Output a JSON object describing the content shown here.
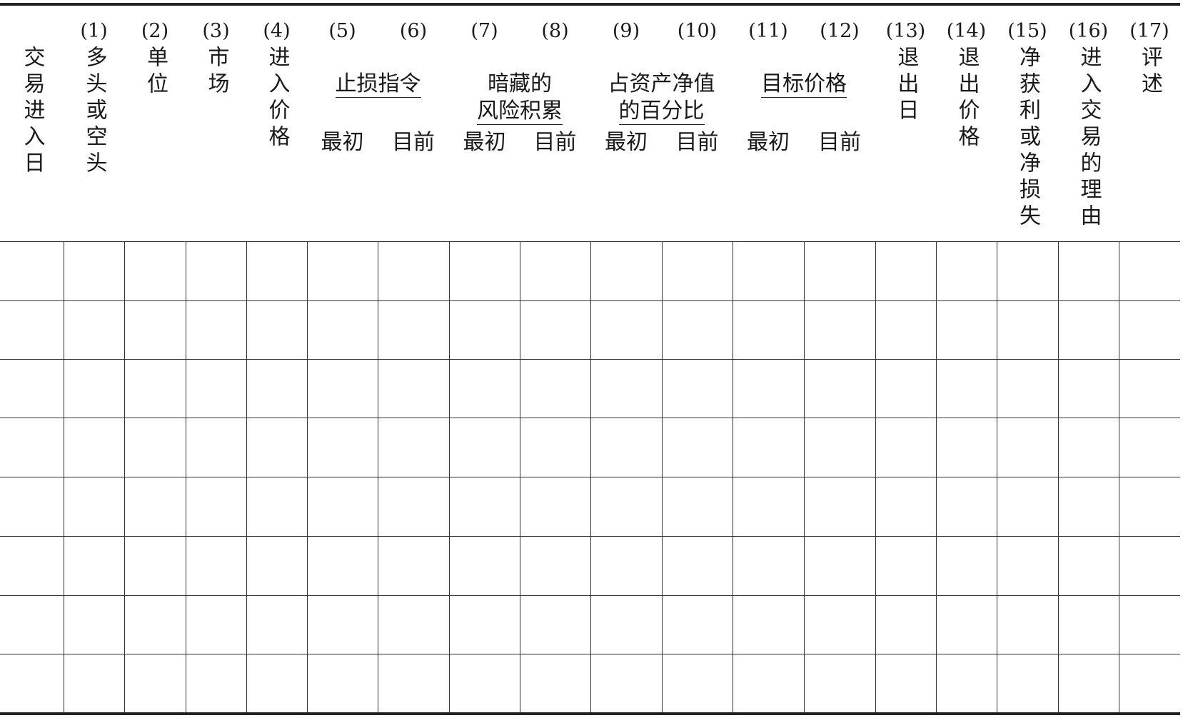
{
  "columns": [
    {
      "num": "",
      "label": "交易进入日"
    },
    {
      "num": "(1)",
      "label": "多头或空头"
    },
    {
      "num": "(2)",
      "label": "单位"
    },
    {
      "num": "(3)",
      "label": "市场"
    },
    {
      "num": "(4)",
      "label": "进入价格"
    },
    {
      "num": "(5)",
      "label": ""
    },
    {
      "num": "(6)",
      "label": ""
    },
    {
      "num": "(7)",
      "label": ""
    },
    {
      "num": "(8)",
      "label": ""
    },
    {
      "num": "(9)",
      "label": ""
    },
    {
      "num": "(10)",
      "label": ""
    },
    {
      "num": "(11)",
      "label": ""
    },
    {
      "num": "(12)",
      "label": ""
    },
    {
      "num": "(13)",
      "label": "退出日"
    },
    {
      "num": "(14)",
      "label": "退出价格"
    },
    {
      "num": "(15)",
      "label": "净获利或净损失"
    },
    {
      "num": "(16)",
      "label": "进入交易的理由"
    },
    {
      "num": "(17)",
      "label": "评述"
    }
  ],
  "groups": [
    {
      "title_line1": "止损指令",
      "title_line2": "",
      "sub": [
        "最初",
        "目前"
      ]
    },
    {
      "title_line1": "暗藏的",
      "title_line2": "风险积累",
      "sub": [
        "最初",
        "目前"
      ]
    },
    {
      "title_line1": "占资产净值",
      "title_line2": "的百分比",
      "sub": [
        "最初",
        "目前"
      ]
    },
    {
      "title_line1": "目标价格",
      "title_line2": "",
      "sub": [
        "最初",
        "目前"
      ]
    }
  ],
  "rows": [
    [
      "",
      "",
      "",
      "",
      "",
      "",
      "",
      "",
      "",
      "",
      "",
      "",
      "",
      "",
      "",
      "",
      "",
      ""
    ],
    [
      "",
      "",
      "",
      "",
      "",
      "",
      "",
      "",
      "",
      "",
      "",
      "",
      "",
      "",
      "",
      "",
      "",
      ""
    ],
    [
      "",
      "",
      "",
      "",
      "",
      "",
      "",
      "",
      "",
      "",
      "",
      "",
      "",
      "",
      "",
      "",
      "",
      ""
    ],
    [
      "",
      "",
      "",
      "",
      "",
      "",
      "",
      "",
      "",
      "",
      "",
      "",
      "",
      "",
      "",
      "",
      "",
      ""
    ],
    [
      "",
      "",
      "",
      "",
      "",
      "",
      "",
      "",
      "",
      "",
      "",
      "",
      "",
      "",
      "",
      "",
      "",
      ""
    ],
    [
      "",
      "",
      "",
      "",
      "",
      "",
      "",
      "",
      "",
      "",
      "",
      "",
      "",
      "",
      "",
      "",
      "",
      ""
    ],
    [
      "",
      "",
      "",
      "",
      "",
      "",
      "",
      "",
      "",
      "",
      "",
      "",
      "",
      "",
      "",
      "",
      "",
      ""
    ],
    [
      "",
      "",
      "",
      "",
      "",
      "",
      "",
      "",
      "",
      "",
      "",
      "",
      "",
      "",
      "",
      "",
      "",
      ""
    ]
  ]
}
